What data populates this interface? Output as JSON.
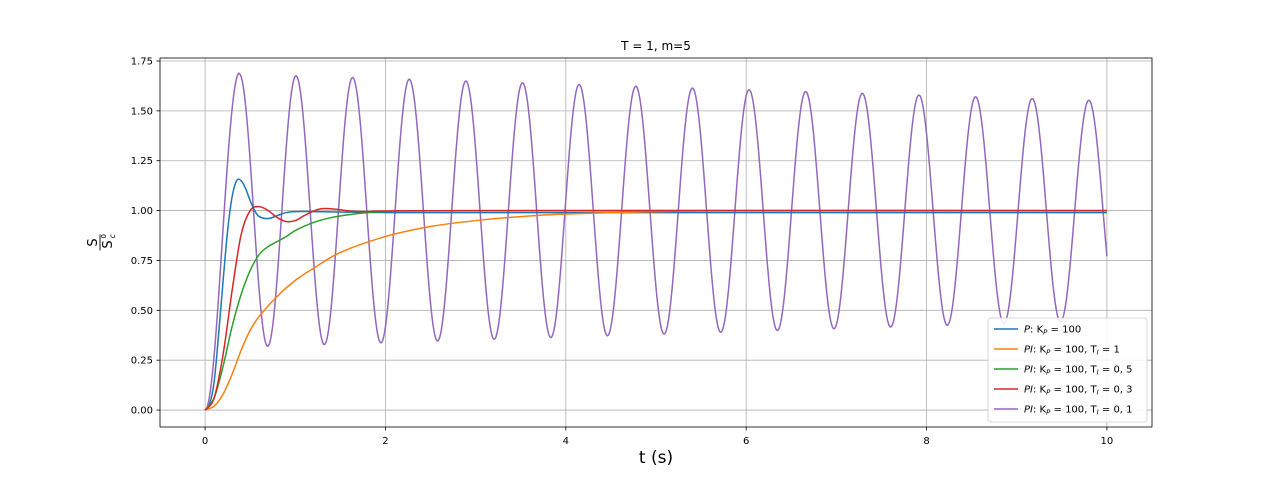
{
  "chart_data": {
    "type": "line",
    "title": "T = 1, m=5",
    "xlabel": "t (s)",
    "ylabel_num": "S",
    "ylabel_den": "S",
    "ylabel_den_sub": "c",
    "ylabel_den_sup": "0",
    "xlim": [
      -0.5,
      10.5
    ],
    "ylim": [
      -0.085,
      1.765
    ],
    "xticks": [
      0,
      2,
      4,
      6,
      8,
      10
    ],
    "xtick_labels": [
      "0",
      "2",
      "4",
      "6",
      "8",
      "10"
    ],
    "yticks": [
      0.0,
      0.25,
      0.5,
      0.75,
      1.0,
      1.25,
      1.5,
      1.75
    ],
    "ytick_labels": [
      "0.00",
      "0.25",
      "0.50",
      "0.75",
      "1.00",
      "1.25",
      "1.50",
      "1.75"
    ],
    "grid": true,
    "legend_position": "lower-right",
    "series": [
      {
        "name": "P : K_P = 100",
        "legend": {
          "pre": "P",
          "mid": ": K",
          "sub": "P",
          "post": " = 100"
        },
        "color": "#1f77b4",
        "points": [
          [
            0,
            0
          ],
          [
            0.05,
            0.03
          ],
          [
            0.1,
            0.14
          ],
          [
            0.15,
            0.38
          ],
          [
            0.2,
            0.65
          ],
          [
            0.25,
            0.9
          ],
          [
            0.3,
            1.07
          ],
          [
            0.35,
            1.15
          ],
          [
            0.4,
            1.15
          ],
          [
            0.45,
            1.11
          ],
          [
            0.5,
            1.05
          ],
          [
            0.55,
            1.0
          ],
          [
            0.6,
            0.97
          ],
          [
            0.7,
            0.96
          ],
          [
            0.8,
            0.975
          ],
          [
            0.9,
            0.99
          ],
          [
            1.0,
            0.995
          ],
          [
            1.2,
            0.995
          ],
          [
            1.5,
            0.993
          ],
          [
            2.0,
            0.99
          ],
          [
            3.0,
            0.99
          ],
          [
            10.0,
            0.99
          ]
        ]
      },
      {
        "name": "PI : K_P = 100, T_I = 1",
        "legend": {
          "pre": "PI",
          "mid": ": K",
          "sub": "P",
          "post": " = 100,  T",
          "sub2": "I",
          "post2": " = 1"
        },
        "color": "#ff7f0e",
        "points": [
          [
            0,
            0
          ],
          [
            0.1,
            0.02
          ],
          [
            0.2,
            0.08
          ],
          [
            0.3,
            0.18
          ],
          [
            0.4,
            0.3
          ],
          [
            0.5,
            0.4
          ],
          [
            0.6,
            0.47
          ],
          [
            0.8,
            0.57
          ],
          [
            1.0,
            0.65
          ],
          [
            1.2,
            0.71
          ],
          [
            1.5,
            0.79
          ],
          [
            2.0,
            0.87
          ],
          [
            2.5,
            0.92
          ],
          [
            3.0,
            0.95
          ],
          [
            3.5,
            0.97
          ],
          [
            4.0,
            0.983
          ],
          [
            5.0,
            0.995
          ],
          [
            6.0,
            1.0
          ],
          [
            10.0,
            1.0
          ]
        ]
      },
      {
        "name": "PI : K_P = 100, T_I = 0,5",
        "legend": {
          "pre": "PI",
          "mid": ": K",
          "sub": "P",
          "post": " = 100,  T",
          "sub2": "I",
          "post2": " = 0, 5"
        },
        "color": "#2ca02c",
        "points": [
          [
            0,
            0
          ],
          [
            0.1,
            0.06
          ],
          [
            0.2,
            0.22
          ],
          [
            0.3,
            0.42
          ],
          [
            0.4,
            0.58
          ],
          [
            0.5,
            0.7
          ],
          [
            0.6,
            0.78
          ],
          [
            0.7,
            0.82
          ],
          [
            0.8,
            0.845
          ],
          [
            0.9,
            0.87
          ],
          [
            1.0,
            0.9
          ],
          [
            1.2,
            0.94
          ],
          [
            1.4,
            0.965
          ],
          [
            1.6,
            0.98
          ],
          [
            1.8,
            0.99
          ],
          [
            2.0,
            0.995
          ],
          [
            3.0,
            1.0
          ],
          [
            10.0,
            1.0
          ]
        ]
      },
      {
        "name": "PI : K_P = 100, T_I = 0,3",
        "legend": {
          "pre": "PI",
          "mid": ": K",
          "sub": "P",
          "post": " = 100,  T",
          "sub2": "I",
          "post2": " = 0, 3"
        },
        "color": "#d62728",
        "points": [
          [
            0,
            0
          ],
          [
            0.1,
            0.06
          ],
          [
            0.2,
            0.28
          ],
          [
            0.3,
            0.6
          ],
          [
            0.4,
            0.88
          ],
          [
            0.5,
            1.0
          ],
          [
            0.6,
            1.02
          ],
          [
            0.7,
            1.0
          ],
          [
            0.8,
            0.965
          ],
          [
            0.9,
            0.945
          ],
          [
            1.0,
            0.95
          ],
          [
            1.1,
            0.975
          ],
          [
            1.2,
            0.997
          ],
          [
            1.3,
            1.01
          ],
          [
            1.45,
            1.007
          ],
          [
            1.6,
            0.998
          ],
          [
            1.8,
            0.995
          ],
          [
            2.0,
            0.998
          ],
          [
            3.0,
            1.0
          ],
          [
            10.0,
            1.0
          ]
        ]
      },
      {
        "name": "PI : K_P = 100, T_I = 0,1",
        "legend": {
          "pre": "PI",
          "mid": ": K",
          "sub": "P",
          "post": " = 100,  T",
          "sub2": "I",
          "post2": " = 0, 1"
        },
        "color": "#9467bd",
        "model": {
          "kind": "damped-oscillation",
          "period": 0.628,
          "peak_time": 0.38,
          "mean": 1.0,
          "amp_start": 0.69,
          "amp_end": 0.55,
          "rise_end": 0.38,
          "t_end": 10.0,
          "y_end": 0.74
        }
      }
    ]
  }
}
